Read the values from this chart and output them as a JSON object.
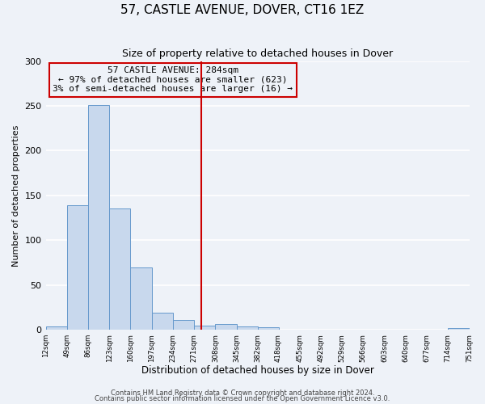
{
  "title": "57, CASTLE AVENUE, DOVER, CT16 1EZ",
  "subtitle": "Size of property relative to detached houses in Dover",
  "xlabel": "Distribution of detached houses by size in Dover",
  "ylabel": "Number of detached properties",
  "bin_edges": [
    12,
    49,
    86,
    123,
    160,
    197,
    234,
    271,
    308,
    345,
    382,
    418,
    455,
    492,
    529,
    566,
    603,
    640,
    677,
    714,
    751
  ],
  "bin_counts": [
    4,
    139,
    251,
    135,
    70,
    19,
    11,
    5,
    6,
    4,
    3,
    0,
    0,
    0,
    0,
    0,
    0,
    0,
    0,
    2
  ],
  "bar_color": "#c8d8ed",
  "bar_edge_color": "#6699cc",
  "property_size": 284,
  "vline_color": "#cc0000",
  "annotation_text": "57 CASTLE AVENUE: 284sqm\n← 97% of detached houses are smaller (623)\n3% of semi-detached houses are larger (16) →",
  "annotation_box_edge_color": "#cc0000",
  "ylim": [
    0,
    300
  ],
  "yticks": [
    0,
    50,
    100,
    150,
    200,
    250,
    300
  ],
  "xtick_labels": [
    "12sqm",
    "49sqm",
    "86sqm",
    "123sqm",
    "160sqm",
    "197sqm",
    "234sqm",
    "271sqm",
    "308sqm",
    "345sqm",
    "382sqm",
    "418sqm",
    "455sqm",
    "492sqm",
    "529sqm",
    "566sqm",
    "603sqm",
    "640sqm",
    "677sqm",
    "714sqm",
    "751sqm"
  ],
  "footnote1": "Contains HM Land Registry data © Crown copyright and database right 2024.",
  "footnote2": "Contains public sector information licensed under the Open Government Licence v3.0.",
  "background_color": "#eef2f8",
  "grid_color": "#ffffff",
  "title_fontsize": 11,
  "subtitle_fontsize": 9,
  "ylabel_fontsize": 8,
  "xlabel_fontsize": 8.5
}
